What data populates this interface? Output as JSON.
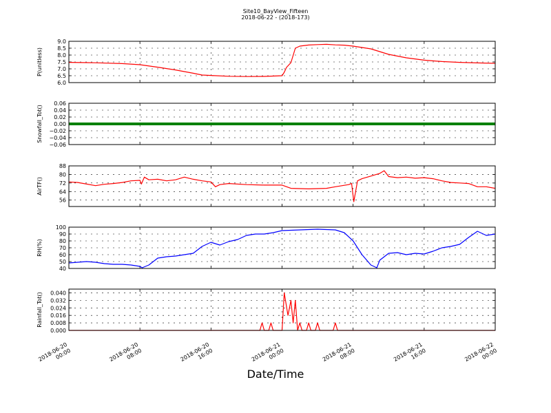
{
  "chart_data": {
    "type": "line",
    "title": "Site10_BayView_Fifteen",
    "subtitle": "2018-06-22 - (2018-173)",
    "xlabel": "Date/Time",
    "x_range": [
      "2018-06-20 00:00",
      "2018-06-22 00:00"
    ],
    "x_ticks": [
      {
        "value": "2018-06-20 00:00",
        "line1": "2018-06-20",
        "line2": "00:00"
      },
      {
        "value": "2018-06-20 08:00",
        "line1": "2018-06-20",
        "line2": "08:00"
      },
      {
        "value": "2018-06-20 16:00",
        "line1": "2018-06-20",
        "line2": "16:00"
      },
      {
        "value": "2018-06-21 00:00",
        "line1": "2018-06-21",
        "line2": "00:00"
      },
      {
        "value": "2018-06-21 08:00",
        "line1": "2018-06-21",
        "line2": "08:00"
      },
      {
        "value": "2018-06-21 16:00",
        "line1": "2018-06-21",
        "line2": "16:00"
      },
      {
        "value": "2018-06-22 00:00",
        "line1": "2018-06-22",
        "line2": "00:00"
      }
    ],
    "grid": true,
    "panels": [
      {
        "ylabel": "P(unitless)",
        "ylim": [
          6.0,
          9.0
        ],
        "yticks": [
          "6.0",
          "6.5",
          "7.0",
          "7.5",
          "8.0",
          "8.5",
          "9.0"
        ],
        "series": [
          {
            "color": "#ff0000",
            "points": [
              [
                "2018-06-20 00:00",
                7.47
              ],
              [
                "2018-06-20 03:00",
                7.44
              ],
              [
                "2018-06-20 06:00",
                7.38
              ],
              [
                "2018-06-20 08:00",
                7.3
              ],
              [
                "2018-06-20 10:00",
                7.12
              ],
              [
                "2018-06-20 12:00",
                6.92
              ],
              [
                "2018-06-20 14:00",
                6.68
              ],
              [
                "2018-06-20 15:00",
                6.55
              ],
              [
                "2018-06-20 16:00",
                6.52
              ],
              [
                "2018-06-20 18:00",
                6.46
              ],
              [
                "2018-06-20 20:00",
                6.44
              ],
              [
                "2018-06-20 22:00",
                6.45
              ],
              [
                "2018-06-21 00:00",
                6.5
              ],
              [
                "2018-06-21 00:15",
                6.75
              ],
              [
                "2018-06-21 00:30",
                7.1
              ],
              [
                "2018-06-21 01:00",
                7.45
              ],
              [
                "2018-06-21 01:30",
                8.5
              ],
              [
                "2018-06-21 02:00",
                8.65
              ],
              [
                "2018-06-21 03:00",
                8.73
              ],
              [
                "2018-06-21 04:00",
                8.76
              ],
              [
                "2018-06-21 05:00",
                8.78
              ],
              [
                "2018-06-21 06:00",
                8.74
              ],
              [
                "2018-06-21 07:00",
                8.72
              ],
              [
                "2018-06-21 08:00",
                8.65
              ],
              [
                "2018-06-21 09:00",
                8.55
              ],
              [
                "2018-06-21 10:00",
                8.45
              ],
              [
                "2018-06-21 11:00",
                8.25
              ],
              [
                "2018-06-21 12:00",
                8.05
              ],
              [
                "2018-06-21 14:00",
                7.8
              ],
              [
                "2018-06-21 16:00",
                7.63
              ],
              [
                "2018-06-21 18:00",
                7.53
              ],
              [
                "2018-06-21 20:00",
                7.47
              ],
              [
                "2018-06-21 22:00",
                7.43
              ],
              [
                "2018-06-22 00:00",
                7.4
              ]
            ]
          }
        ]
      },
      {
        "ylabel": "Snowfall_Tot()",
        "ylim": [
          -0.06,
          0.06
        ],
        "yticks": [
          "−0.06",
          "−0.04",
          "−0.02",
          "0.00",
          "0.02",
          "0.04",
          "0.06"
        ],
        "series": [
          {
            "color": "#008000",
            "constant": 0.0
          }
        ]
      },
      {
        "ylabel": "AirTF()",
        "ylim": [
          50,
          88
        ],
        "yticks": [
          "56",
          "64",
          "72",
          "80",
          "88"
        ],
        "series": [
          {
            "color": "#ff0000",
            "points": [
              [
                "2018-06-20 00:00",
                73.0
              ],
              [
                "2018-06-20 01:00",
                72.5
              ],
              [
                "2018-06-20 02:00",
                71.0
              ],
              [
                "2018-06-20 03:00",
                69.5
              ],
              [
                "2018-06-20 04:00",
                70.8
              ],
              [
                "2018-06-20 05:00",
                71.5
              ],
              [
                "2018-06-20 06:00",
                72.5
              ],
              [
                "2018-06-20 07:00",
                74.0
              ],
              [
                "2018-06-20 08:00",
                74.5
              ],
              [
                "2018-06-20 08:10",
                71.0
              ],
              [
                "2018-06-20 08:30",
                77.5
              ],
              [
                "2018-06-20 09:00",
                75.0
              ],
              [
                "2018-06-20 10:00",
                75.5
              ],
              [
                "2018-06-20 11:00",
                74.0
              ],
              [
                "2018-06-20 12:00",
                75.0
              ],
              [
                "2018-06-20 13:00",
                77.5
              ],
              [
                "2018-06-20 14:00",
                75.5
              ],
              [
                "2018-06-20 15:00",
                74.0
              ],
              [
                "2018-06-20 16:00",
                73.0
              ],
              [
                "2018-06-20 16:30",
                68.5
              ],
              [
                "2018-06-20 17:00",
                70.5
              ],
              [
                "2018-06-20 18:00",
                71.5
              ],
              [
                "2018-06-20 20:00",
                70.5
              ],
              [
                "2018-06-20 22:00",
                70.0
              ],
              [
                "2018-06-21 00:00",
                70.0
              ],
              [
                "2018-06-21 01:00",
                67.0
              ],
              [
                "2018-06-21 03:00",
                66.5
              ],
              [
                "2018-06-21 05:00",
                67.0
              ],
              [
                "2018-06-21 06:00",
                68.5
              ],
              [
                "2018-06-21 07:30",
                70.5
              ],
              [
                "2018-06-21 07:50",
                71.5
              ],
              [
                "2018-06-21 08:05",
                54.5
              ],
              [
                "2018-06-21 08:30",
                74.0
              ],
              [
                "2018-06-21 09:00",
                76.0
              ],
              [
                "2018-06-21 10:00",
                78.5
              ],
              [
                "2018-06-21 11:00",
                81.0
              ],
              [
                "2018-06-21 11:30",
                83.5
              ],
              [
                "2018-06-21 12:00",
                78.0
              ],
              [
                "2018-06-21 13:00",
                77.0
              ],
              [
                "2018-06-21 14:00",
                77.5
              ],
              [
                "2018-06-21 15:00",
                76.5
              ],
              [
                "2018-06-21 16:00",
                77.0
              ],
              [
                "2018-06-21 17:00",
                76.0
              ],
              [
                "2018-06-21 18:00",
                74.0
              ],
              [
                "2018-06-21 19:00",
                72.5
              ],
              [
                "2018-06-21 20:00",
                72.0
              ],
              [
                "2018-06-21 21:00",
                71.5
              ],
              [
                "2018-06-21 22:00",
                68.5
              ],
              [
                "2018-06-21 23:00",
                68.5
              ],
              [
                "2018-06-22 00:00",
                67.0
              ]
            ]
          }
        ]
      },
      {
        "ylabel": "RH(%)",
        "ylim": [
          40,
          100
        ],
        "yticks": [
          "40",
          "50",
          "60",
          "70",
          "80",
          "90",
          "100"
        ],
        "series": [
          {
            "color": "#0000ff",
            "points": [
              [
                "2018-06-20 00:00",
                48
              ],
              [
                "2018-06-20 01:00",
                49
              ],
              [
                "2018-06-20 02:00",
                50
              ],
              [
                "2018-06-20 03:00",
                49
              ],
              [
                "2018-06-20 04:00",
                47
              ],
              [
                "2018-06-20 05:00",
                46
              ],
              [
                "2018-06-20 06:00",
                46
              ],
              [
                "2018-06-20 07:00",
                45
              ],
              [
                "2018-06-20 08:00",
                43
              ],
              [
                "2018-06-20 08:15",
                41
              ],
              [
                "2018-06-20 09:00",
                45
              ],
              [
                "2018-06-20 10:00",
                55
              ],
              [
                "2018-06-20 11:00",
                57
              ],
              [
                "2018-06-20 12:00",
                58
              ],
              [
                "2018-06-20 13:00",
                60
              ],
              [
                "2018-06-20 14:00",
                62
              ],
              [
                "2018-06-20 15:00",
                72
              ],
              [
                "2018-06-20 16:00",
                78
              ],
              [
                "2018-06-20 17:00",
                74
              ],
              [
                "2018-06-20 18:00",
                79
              ],
              [
                "2018-06-20 19:00",
                82
              ],
              [
                "2018-06-20 20:00",
                88
              ],
              [
                "2018-06-20 21:00",
                90
              ],
              [
                "2018-06-20 22:00",
                90
              ],
              [
                "2018-06-20 23:00",
                92
              ],
              [
                "2018-06-21 00:00",
                95
              ],
              [
                "2018-06-21 02:00",
                96
              ],
              [
                "2018-06-21 04:00",
                97
              ],
              [
                "2018-06-21 06:00",
                96
              ],
              [
                "2018-06-21 07:00",
                92
              ],
              [
                "2018-06-21 08:00",
                80
              ],
              [
                "2018-06-21 09:00",
                60
              ],
              [
                "2018-06-21 10:00",
                45
              ],
              [
                "2018-06-21 10:40",
                41
              ],
              [
                "2018-06-21 11:00",
                52
              ],
              [
                "2018-06-21 12:00",
                62
              ],
              [
                "2018-06-21 13:00",
                63
              ],
              [
                "2018-06-21 14:00",
                60
              ],
              [
                "2018-06-21 15:00",
                62
              ],
              [
                "2018-06-21 16:00",
                61
              ],
              [
                "2018-06-21 17:00",
                65
              ],
              [
                "2018-06-21 18:00",
                70
              ],
              [
                "2018-06-21 19:00",
                72
              ],
              [
                "2018-06-21 20:00",
                75
              ],
              [
                "2018-06-21 21:00",
                85
              ],
              [
                "2018-06-21 22:00",
                94
              ],
              [
                "2018-06-21 23:00",
                88
              ],
              [
                "2018-06-22 00:00",
                90
              ]
            ]
          }
        ]
      },
      {
        "ylabel": "Rainfall_Tot()",
        "ylim": [
          0.0,
          0.044
        ],
        "yticks": [
          "0.000",
          "0.008",
          "0.016",
          "0.024",
          "0.032",
          "0.040"
        ],
        "series": [
          {
            "color": "#ff0000",
            "points": [
              [
                "2018-06-20 00:00",
                0.0
              ],
              [
                "2018-06-20 21:30",
                0.0
              ],
              [
                "2018-06-20 21:45",
                0.008
              ],
              [
                "2018-06-20 22:00",
                0.0
              ],
              [
                "2018-06-20 22:30",
                0.0
              ],
              [
                "2018-06-20 22:45",
                0.008
              ],
              [
                "2018-06-20 23:00",
                0.0
              ],
              [
                "2018-06-21 00:00",
                0.0
              ],
              [
                "2018-06-21 00:15",
                0.04
              ],
              [
                "2018-06-21 00:40",
                0.016
              ],
              [
                "2018-06-21 01:00",
                0.032
              ],
              [
                "2018-06-21 01:15",
                0.008
              ],
              [
                "2018-06-21 01:30",
                0.032
              ],
              [
                "2018-06-21 01:45",
                0.0
              ],
              [
                "2018-06-21 02:00",
                0.008
              ],
              [
                "2018-06-21 02:15",
                0.0
              ],
              [
                "2018-06-21 02:45",
                0.0
              ],
              [
                "2018-06-21 03:00",
                0.008
              ],
              [
                "2018-06-21 03:15",
                0.0
              ],
              [
                "2018-06-21 03:45",
                0.0
              ],
              [
                "2018-06-21 04:00",
                0.008
              ],
              [
                "2018-06-21 04:15",
                0.0
              ],
              [
                "2018-06-21 05:45",
                0.0
              ],
              [
                "2018-06-21 06:00",
                0.008
              ],
              [
                "2018-06-21 06:15",
                0.0
              ],
              [
                "2018-06-22 00:00",
                0.0
              ]
            ]
          }
        ]
      }
    ]
  }
}
